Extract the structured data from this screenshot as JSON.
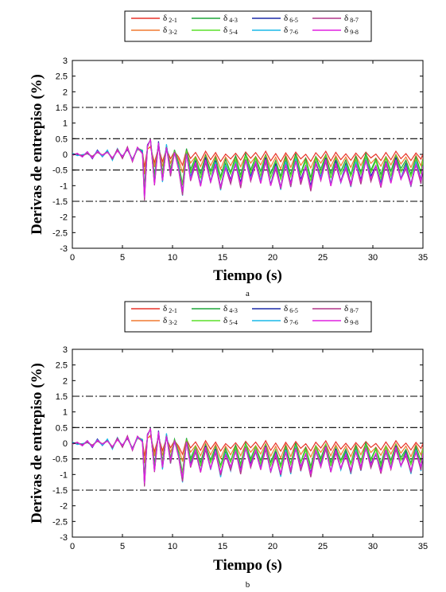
{
  "figure": {
    "panels": [
      {
        "label": "a",
        "chart_data": {
          "type": "line",
          "xlabel": "Tiempo (s)",
          "ylabel": "Derivas de entrepiso (%)",
          "xlim": [
            0,
            35
          ],
          "ylim": [
            -3,
            3
          ],
          "xticks": [
            0,
            5,
            10,
            15,
            20,
            25,
            30,
            35
          ],
          "yticks": [
            -3,
            -2.5,
            -2,
            -1.5,
            -1,
            -0.5,
            0,
            0.5,
            1,
            1.5,
            2,
            2.5,
            3
          ],
          "grid": false,
          "legend_position": "top",
          "reference_lines": [
            1.5,
            0.5,
            -0.5,
            -1.5
          ],
          "series": [
            {
              "symbol": "δ",
              "subscript": "2-1",
              "color": "#e8342a",
              "scale": 0.35,
              "shift": 0.12
            },
            {
              "symbol": "δ",
              "subscript": "3-2",
              "color": "#f07a30",
              "scale": 0.5,
              "shift": 0.05
            },
            {
              "symbol": "δ",
              "subscript": "4-3",
              "color": "#1fa53a",
              "scale": 0.8,
              "shift": 0.08
            },
            {
              "symbol": "δ",
              "subscript": "5-4",
              "color": "#5ce02a",
              "scale": 0.85,
              "shift": 0.02
            },
            {
              "symbol": "δ",
              "subscript": "6-5",
              "color": "#1c2aa8",
              "scale": 1.0,
              "shift": -0.03
            },
            {
              "symbol": "δ",
              "subscript": "7-6",
              "color": "#1ab8e8",
              "scale": 1.05,
              "shift": -0.06
            },
            {
              "symbol": "δ",
              "subscript": "8-7",
              "color": "#b0378a",
              "scale": 1.02,
              "shift": -0.12
            },
            {
              "symbol": "δ",
              "subscript": "9-8",
              "color": "#e020e0",
              "scale": 0.98,
              "shift": -0.1
            }
          ]
        }
      },
      {
        "label": "b",
        "chart_data": {
          "type": "line",
          "xlabel": "Tiempo (s)",
          "ylabel": "Derivas de entrepiso (%)",
          "xlim": [
            0,
            35
          ],
          "ylim": [
            -3,
            3
          ],
          "xticks": [
            0,
            5,
            10,
            15,
            20,
            25,
            30,
            35
          ],
          "yticks": [
            -3,
            -2.5,
            -2,
            -1.5,
            -1,
            -0.5,
            0,
            0.5,
            1,
            1.5,
            2,
            2.5,
            3
          ],
          "grid": false,
          "legend_position": "top",
          "reference_lines": [
            1.5,
            0.5,
            -0.5,
            -1.5
          ],
          "series": [
            {
              "symbol": "δ",
              "subscript": "2-1",
              "color": "#e8342a",
              "scale": 0.35,
              "shift": 0.1
            },
            {
              "symbol": "δ",
              "subscript": "3-2",
              "color": "#f07a30",
              "scale": 0.5,
              "shift": 0.04
            },
            {
              "symbol": "δ",
              "subscript": "4-3",
              "color": "#1fa53a",
              "scale": 0.78,
              "shift": 0.06
            },
            {
              "symbol": "δ",
              "subscript": "5-4",
              "color": "#5ce02a",
              "scale": 0.82,
              "shift": 0.02
            },
            {
              "symbol": "δ",
              "subscript": "6-5",
              "color": "#1c2aa8",
              "scale": 0.95,
              "shift": -0.02
            },
            {
              "symbol": "δ",
              "subscript": "7-6",
              "color": "#1ab8e8",
              "scale": 1.0,
              "shift": -0.05
            },
            {
              "symbol": "δ",
              "subscript": "8-7",
              "color": "#b0378a",
              "scale": 0.97,
              "shift": -0.08
            },
            {
              "symbol": "δ",
              "subscript": "9-8",
              "color": "#e020e0",
              "scale": 0.92,
              "shift": -0.06
            }
          ]
        }
      }
    ],
    "waveform": {
      "t": [
        0,
        0.5,
        1,
        1.5,
        2,
        2.5,
        3,
        3.5,
        4,
        4.5,
        5,
        5.5,
        6,
        6.5,
        7,
        7.2,
        7.5,
        7.8,
        8.2,
        8.6,
        9,
        9.4,
        9.8,
        10.2,
        10.6,
        11,
        11.4,
        11.8,
        12.3,
        12.8,
        13.3,
        13.8,
        14.3,
        14.8,
        15.3,
        15.8,
        16.3,
        16.8,
        17.3,
        17.8,
        18.3,
        18.8,
        19.3,
        19.8,
        20.3,
        20.8,
        21.3,
        21.8,
        22.3,
        22.8,
        23.3,
        23.8,
        24.3,
        24.8,
        25.3,
        25.8,
        26.3,
        26.8,
        27.3,
        27.8,
        28.3,
        28.8,
        29.3,
        29.8,
        30.3,
        30.8,
        31.3,
        31.8,
        32.3,
        32.8,
        33.3,
        33.8,
        34.3,
        34.8,
        35
      ],
      "y": [
        0,
        0,
        -0.05,
        0.05,
        -0.1,
        0.1,
        -0.05,
        0.1,
        -0.15,
        0.15,
        -0.1,
        0.2,
        -0.2,
        0.2,
        0.1,
        -1.35,
        0.3,
        0.5,
        -0.9,
        0.4,
        -0.8,
        0.3,
        -0.6,
        0.1,
        -0.4,
        -1.2,
        0.1,
        -0.7,
        -0.2,
        -0.9,
        -0.1,
        -0.8,
        -0.2,
        -1.0,
        -0.3,
        -0.8,
        -0.2,
        -0.9,
        -0.1,
        -0.7,
        -0.2,
        -0.8,
        -0.1,
        -0.9,
        -0.3,
        -1.0,
        -0.2,
        -0.9,
        -0.1,
        -0.8,
        -0.3,
        -1.0,
        -0.2,
        -0.7,
        -0.1,
        -0.9,
        -0.2,
        -0.8,
        -0.3,
        -0.9,
        -0.2,
        -0.8,
        -0.1,
        -0.7,
        -0.3,
        -0.9,
        -0.2,
        -0.8,
        -0.1,
        -0.7,
        -0.3,
        -0.9,
        -0.2,
        -0.8,
        -0.3
      ]
    }
  }
}
